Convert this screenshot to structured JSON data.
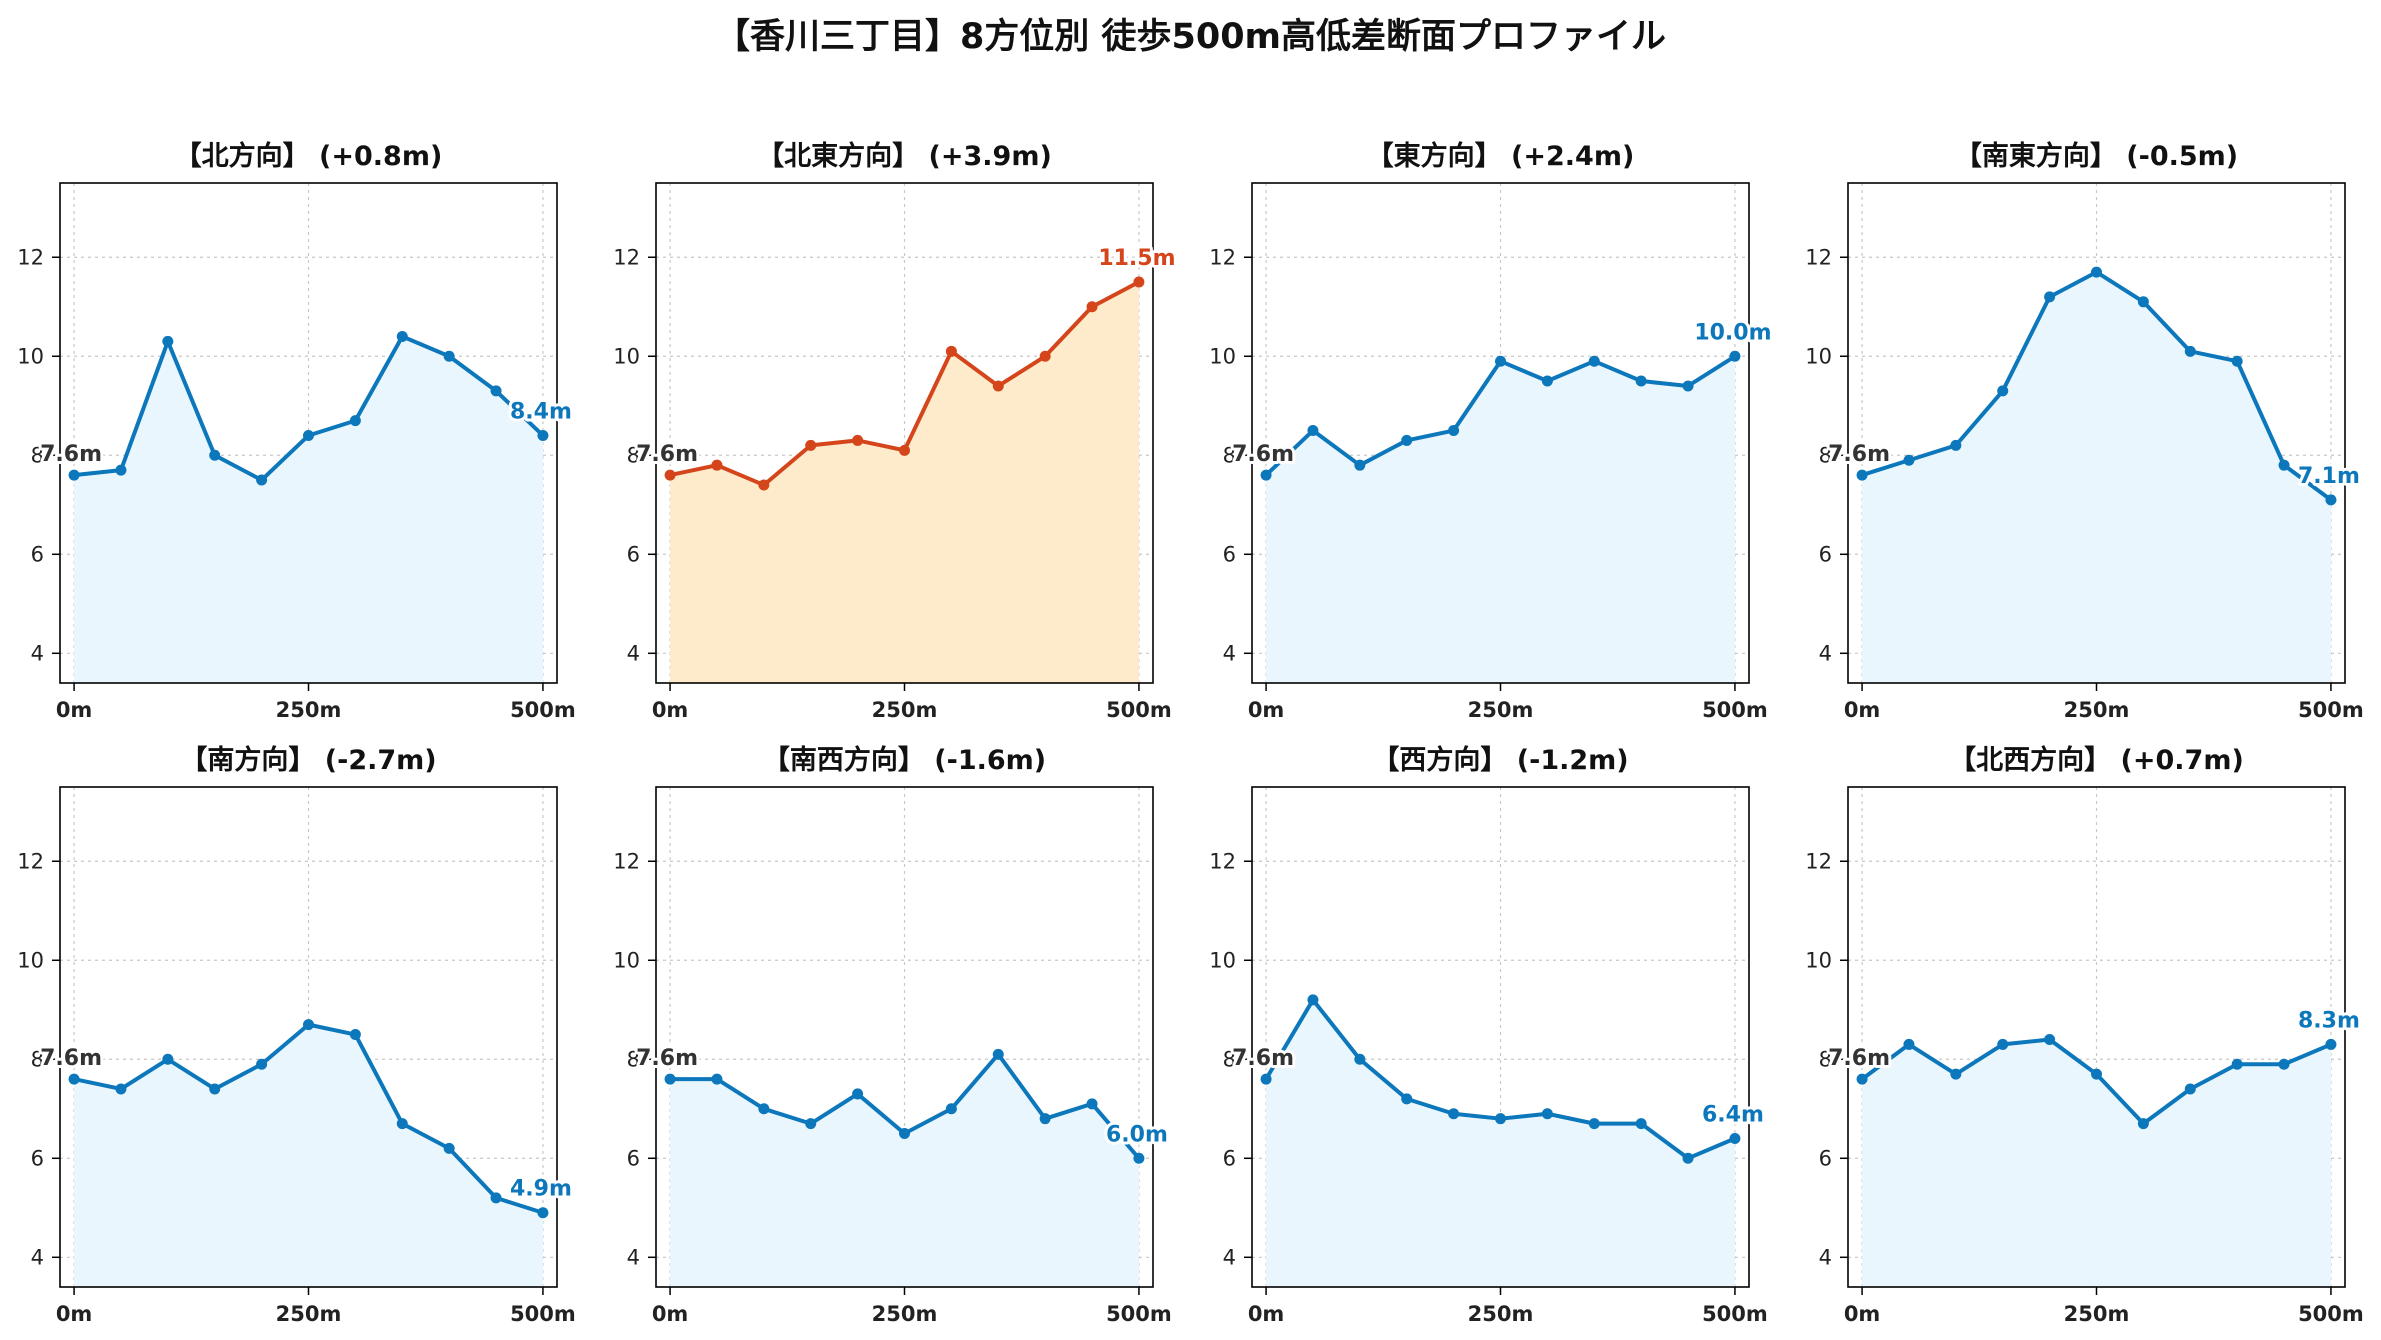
{
  "figure": {
    "title": "【香川三丁目】8方位別 徒歩500m高低差断面プロファイル"
  },
  "colors": {
    "normal_line": "#0c77bb",
    "normal_fill": "#e9f6fd",
    "highlight_line": "#d5451b",
    "highlight_fill": "#fdebcc",
    "start_label": "#333333",
    "grid": "#c8c8c8"
  },
  "chart_data": [
    {
      "type": "area",
      "title": "【北方向】 (+0.8m)",
      "x": [
        0,
        50,
        100,
        150,
        200,
        250,
        300,
        350,
        400,
        450,
        500
      ],
      "y": [
        7.6,
        7.7,
        10.3,
        8.0,
        7.5,
        8.4,
        8.7,
        10.4,
        10.0,
        9.3,
        8.4
      ],
      "start_label": "7.6m",
      "end_label": "8.4m",
      "highlight": false,
      "xticks": [
        "0m",
        "250m",
        "500m"
      ],
      "yticks": [
        "4",
        "6",
        "8",
        "10",
        "12"
      ],
      "xlim": [
        -15,
        515
      ],
      "ylim": [
        3.4,
        13.5
      ],
      "grid": true
    },
    {
      "type": "area",
      "title": "【北東方向】 (+3.9m)",
      "x": [
        0,
        50,
        100,
        150,
        200,
        250,
        300,
        350,
        400,
        450,
        500
      ],
      "y": [
        7.6,
        7.8,
        7.4,
        8.2,
        8.3,
        8.1,
        10.1,
        9.4,
        10.0,
        11.0,
        11.5
      ],
      "start_label": "7.6m",
      "end_label": "11.5m",
      "highlight": true,
      "xticks": [
        "0m",
        "250m",
        "500m"
      ],
      "yticks": [
        "4",
        "6",
        "8",
        "10",
        "12"
      ],
      "xlim": [
        -15,
        515
      ],
      "ylim": [
        3.4,
        13.5
      ],
      "grid": true
    },
    {
      "type": "area",
      "title": "【東方向】 (+2.4m)",
      "x": [
        0,
        50,
        100,
        150,
        200,
        250,
        300,
        350,
        400,
        450,
        500
      ],
      "y": [
        7.6,
        8.5,
        7.8,
        8.3,
        8.5,
        9.9,
        9.5,
        9.9,
        9.5,
        9.4,
        10.0
      ],
      "start_label": "7.6m",
      "end_label": "10.0m",
      "highlight": false,
      "xticks": [
        "0m",
        "250m",
        "500m"
      ],
      "yticks": [
        "4",
        "6",
        "8",
        "10",
        "12"
      ],
      "xlim": [
        -15,
        515
      ],
      "ylim": [
        3.4,
        13.5
      ],
      "grid": true
    },
    {
      "type": "area",
      "title": "【南東方向】 (-0.5m)",
      "x": [
        0,
        50,
        100,
        150,
        200,
        250,
        300,
        350,
        400,
        450,
        500
      ],
      "y": [
        7.6,
        7.9,
        8.2,
        9.3,
        11.2,
        11.7,
        11.1,
        10.1,
        9.9,
        7.8,
        7.1
      ],
      "start_label": "7.6m",
      "end_label": "7.1m",
      "highlight": false,
      "xticks": [
        "0m",
        "250m",
        "500m"
      ],
      "yticks": [
        "4",
        "6",
        "8",
        "10",
        "12"
      ],
      "xlim": [
        -15,
        515
      ],
      "ylim": [
        3.4,
        13.5
      ],
      "grid": true
    },
    {
      "type": "area",
      "title": "【南方向】 (-2.7m)",
      "x": [
        0,
        50,
        100,
        150,
        200,
        250,
        300,
        350,
        400,
        450,
        500
      ],
      "y": [
        7.6,
        7.4,
        8.0,
        7.4,
        7.9,
        8.7,
        8.5,
        6.7,
        6.2,
        5.2,
        4.9
      ],
      "start_label": "7.6m",
      "end_label": "4.9m",
      "highlight": false,
      "xticks": [
        "0m",
        "250m",
        "500m"
      ],
      "yticks": [
        "4",
        "6",
        "8",
        "10",
        "12"
      ],
      "xlim": [
        -15,
        515
      ],
      "ylim": [
        3.4,
        13.5
      ],
      "grid": true
    },
    {
      "type": "area",
      "title": "【南西方向】 (-1.6m)",
      "x": [
        0,
        50,
        100,
        150,
        200,
        250,
        300,
        350,
        400,
        450,
        500
      ],
      "y": [
        7.6,
        7.6,
        7.0,
        6.7,
        7.3,
        6.5,
        7.0,
        8.1,
        6.8,
        7.1,
        6.0
      ],
      "start_label": "7.6m",
      "end_label": "6.0m",
      "highlight": false,
      "xticks": [
        "0m",
        "250m",
        "500m"
      ],
      "yticks": [
        "4",
        "6",
        "8",
        "10",
        "12"
      ],
      "xlim": [
        -15,
        515
      ],
      "ylim": [
        3.4,
        13.5
      ],
      "grid": true
    },
    {
      "type": "area",
      "title": "【西方向】 (-1.2m)",
      "x": [
        0,
        50,
        100,
        150,
        200,
        250,
        300,
        350,
        400,
        450,
        500
      ],
      "y": [
        7.6,
        9.2,
        8.0,
        7.2,
        6.9,
        6.8,
        6.9,
        6.7,
        6.7,
        6.0,
        6.4
      ],
      "start_label": "7.6m",
      "end_label": "6.4m",
      "highlight": false,
      "xticks": [
        "0m",
        "250m",
        "500m"
      ],
      "yticks": [
        "4",
        "6",
        "8",
        "10",
        "12"
      ],
      "xlim": [
        -15,
        515
      ],
      "ylim": [
        3.4,
        13.5
      ],
      "grid": true
    },
    {
      "type": "area",
      "title": "【北西方向】 (+0.7m)",
      "x": [
        0,
        50,
        100,
        150,
        200,
        250,
        300,
        350,
        400,
        450,
        500
      ],
      "y": [
        7.6,
        8.3,
        7.7,
        8.3,
        8.4,
        7.7,
        6.7,
        7.4,
        7.9,
        7.9,
        8.3
      ],
      "start_label": "7.6m",
      "end_label": "8.3m",
      "highlight": false,
      "xticks": [
        "0m",
        "250m",
        "500m"
      ],
      "yticks": [
        "4",
        "6",
        "8",
        "10",
        "12"
      ],
      "xlim": [
        -15,
        515
      ],
      "ylim": [
        3.4,
        13.5
      ],
      "grid": true
    }
  ]
}
